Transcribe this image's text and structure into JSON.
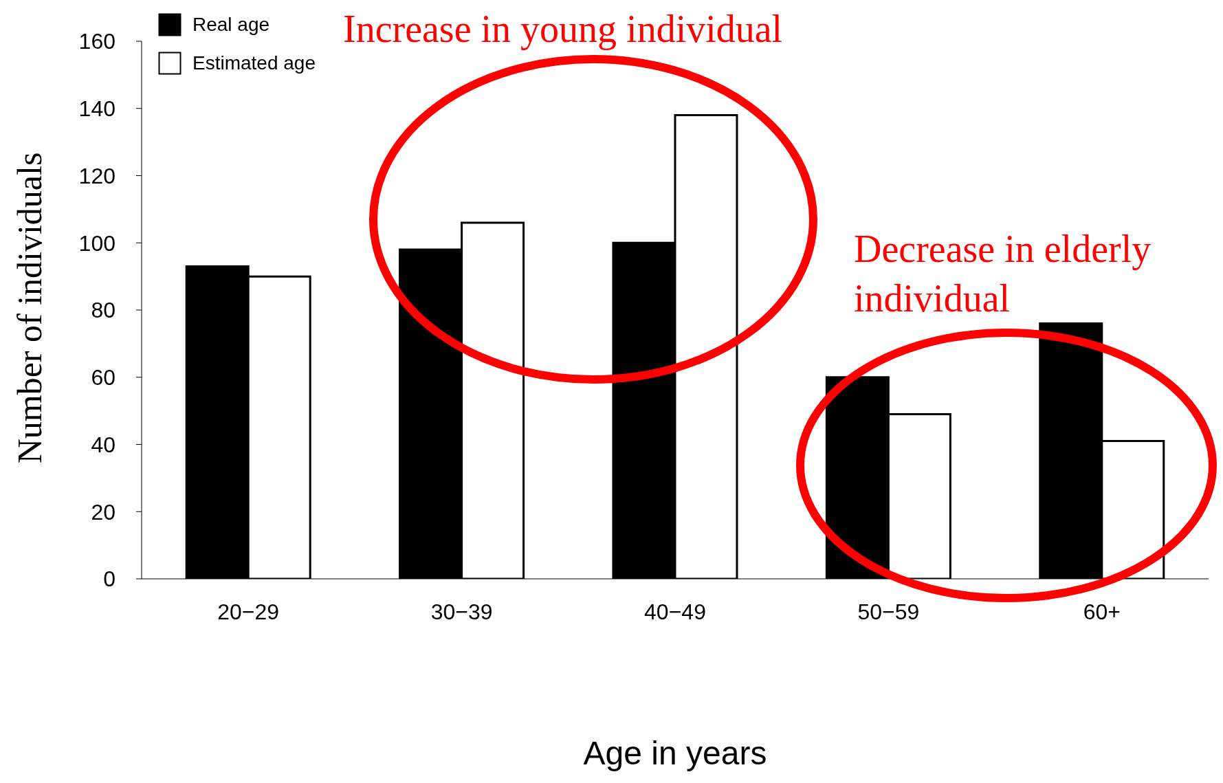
{
  "chart_data": {
    "type": "bar",
    "xlabel": "Age in years",
    "ylabel": "Number of individuals",
    "categories": [
      "20−29",
      "30−39",
      "40−49",
      "50−59",
      "60+"
    ],
    "series": [
      {
        "name": "Real age",
        "color": "#000000",
        "values": [
          93,
          98,
          100,
          60,
          76
        ]
      },
      {
        "name": "Estimated age",
        "color": "#ffffff",
        "values": [
          90,
          106,
          138,
          49,
          41
        ]
      }
    ],
    "ylim": [
      0,
      160
    ],
    "yticks": [
      0,
      20,
      40,
      60,
      80,
      100,
      120,
      140,
      160
    ],
    "legend": "top left",
    "annotations": [
      "Increase in young individual",
      "Decrease in elderly individual"
    ]
  }
}
